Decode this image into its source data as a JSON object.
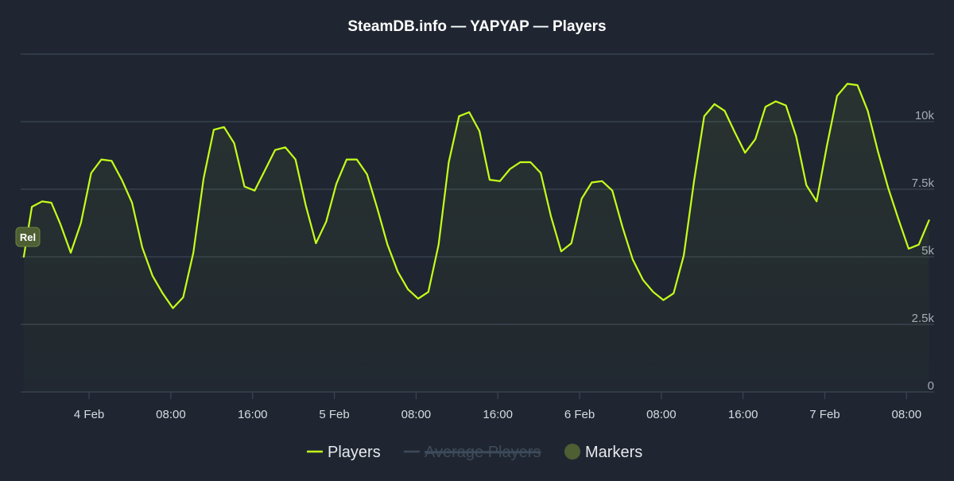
{
  "chart_data": {
    "type": "line",
    "title": "SteamDB.info — YAPYAP — Players",
    "ylim": [
      0,
      12500
    ],
    "y_ticks": [
      0,
      2500,
      5000,
      7500,
      10000
    ],
    "y_tick_labels": [
      "0",
      "2.5k",
      "5k",
      "7.5k",
      "10k"
    ],
    "x_ticks": [
      {
        "hour": 24,
        "label": "4 Feb"
      },
      {
        "hour": 32,
        "label": "08:00"
      },
      {
        "hour": 40,
        "label": "16:00"
      },
      {
        "hour": 48,
        "label": "5 Feb"
      },
      {
        "hour": 56,
        "label": "08:00"
      },
      {
        "hour": 64,
        "label": "16:00"
      },
      {
        "hour": 72,
        "label": "6 Feb"
      },
      {
        "hour": 80,
        "label": "08:00"
      },
      {
        "hour": 88,
        "label": "16:00"
      },
      {
        "hour": 96,
        "label": "7 Feb"
      },
      {
        "hour": 104,
        "label": "08:00"
      }
    ],
    "x_range": [
      17.3,
      106.7
    ],
    "marker": {
      "label": "Rel",
      "hour": 18.0
    },
    "series": [
      {
        "name": "Players",
        "color": "#c5ff1a",
        "x": [
          17.6,
          18.4,
          19.4,
          20.3,
          21.2,
          22.2,
          23.2,
          24.2,
          25.2,
          26.2,
          27.2,
          28.2,
          29.2,
          30.2,
          31.2,
          32.2,
          33.2,
          34.2,
          35.2,
          36.2,
          37.2,
          38.2,
          39.2,
          40.2,
          41.2,
          42.2,
          43.2,
          44.2,
          45.2,
          46.2,
          47.2,
          48.2,
          49.2,
          50.2,
          51.2,
          52.2,
          53.2,
          54.2,
          55.2,
          56.2,
          57.2,
          58.2,
          59.2,
          60.2,
          61.2,
          62.2,
          63.2,
          64.2,
          65.2,
          66.2,
          67.2,
          68.2,
          69.2,
          70.2,
          71.2,
          72.2,
          73.2,
          74.2,
          75.2,
          76.2,
          77.2,
          78.2,
          79.2,
          80.2,
          81.2,
          82.2,
          83.2,
          84.2,
          85.2,
          86.2,
          87.2,
          88.2,
          89.2,
          90.2,
          91.2,
          92.2,
          93.2,
          94.2,
          95.2,
          96.2,
          97.2,
          98.2,
          99.2,
          100.2,
          101.2,
          102.2,
          103.2,
          104.2,
          105.2,
          106.2
        ],
        "values": [
          5000,
          6850,
          7050,
          7000,
          6200,
          5150,
          6250,
          8100,
          8600,
          8550,
          7850,
          7000,
          5350,
          4300,
          3650,
          3100,
          3500,
          5150,
          7900,
          9700,
          9800,
          9200,
          7600,
          7450,
          8200,
          8950,
          9050,
          8600,
          6900,
          5500,
          6300,
          7700,
          8600,
          8600,
          8050,
          6800,
          5450,
          4450,
          3800,
          3450,
          3700,
          5450,
          8500,
          10200,
          10350,
          9650,
          7850,
          7800,
          8250,
          8500,
          8500,
          8100,
          6500,
          5200,
          5500,
          7150,
          7750,
          7800,
          7450,
          6100,
          4900,
          4150,
          3700,
          3400,
          3650,
          5050,
          7800,
          10200,
          10650,
          10400,
          9600,
          8850,
          9350,
          10550,
          10750,
          10600,
          9450,
          7650,
          7050,
          9100,
          10950,
          11400,
          11350,
          10400,
          8900,
          7550,
          6400,
          5300,
          5450,
          6350
        ]
      }
    ],
    "legend": {
      "position": "bottom-center",
      "items": [
        {
          "name": "Players",
          "color": "#c5ff1a",
          "state": "active",
          "symbol": "line"
        },
        {
          "name": "Average Players",
          "color": "#3d4a5a",
          "state": "hidden",
          "symbol": "line"
        },
        {
          "name": "Markers",
          "color": "#4d5f33",
          "state": "active",
          "symbol": "circle"
        }
      ]
    },
    "colors": {
      "background": "#1f2631",
      "grid": "#3b4654",
      "area_fill": "#c5ff1a"
    }
  }
}
